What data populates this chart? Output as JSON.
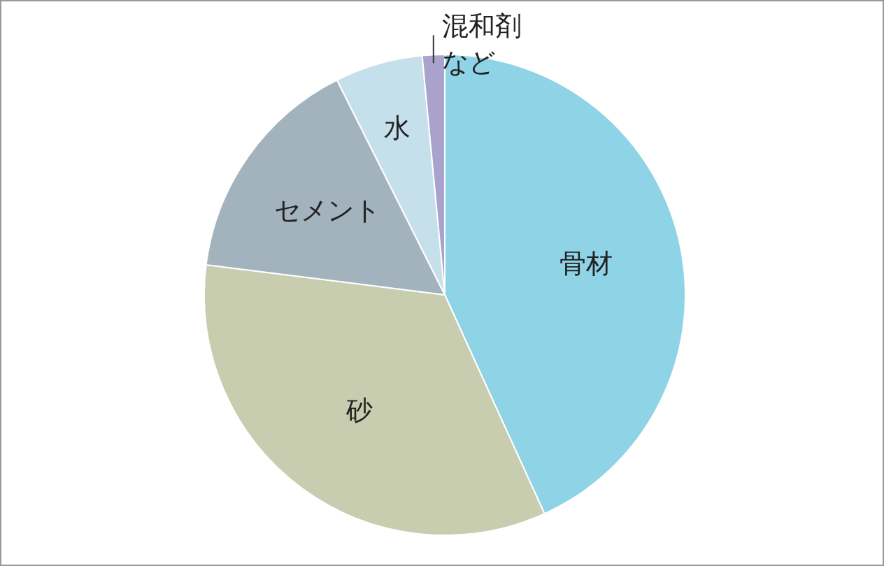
{
  "chart_data": {
    "type": "pie",
    "categories": [
      "骨材",
      "砂",
      "セメント",
      "水",
      "混和剤など"
    ],
    "values": [
      43.2,
      33.8,
      15.6,
      5.9,
      1.5
    ],
    "colors": [
      "#8fd3e6",
      "#c9cdb0",
      "#a3b3bd",
      "#c5dfeb",
      "#a8a2cc"
    ]
  }
}
